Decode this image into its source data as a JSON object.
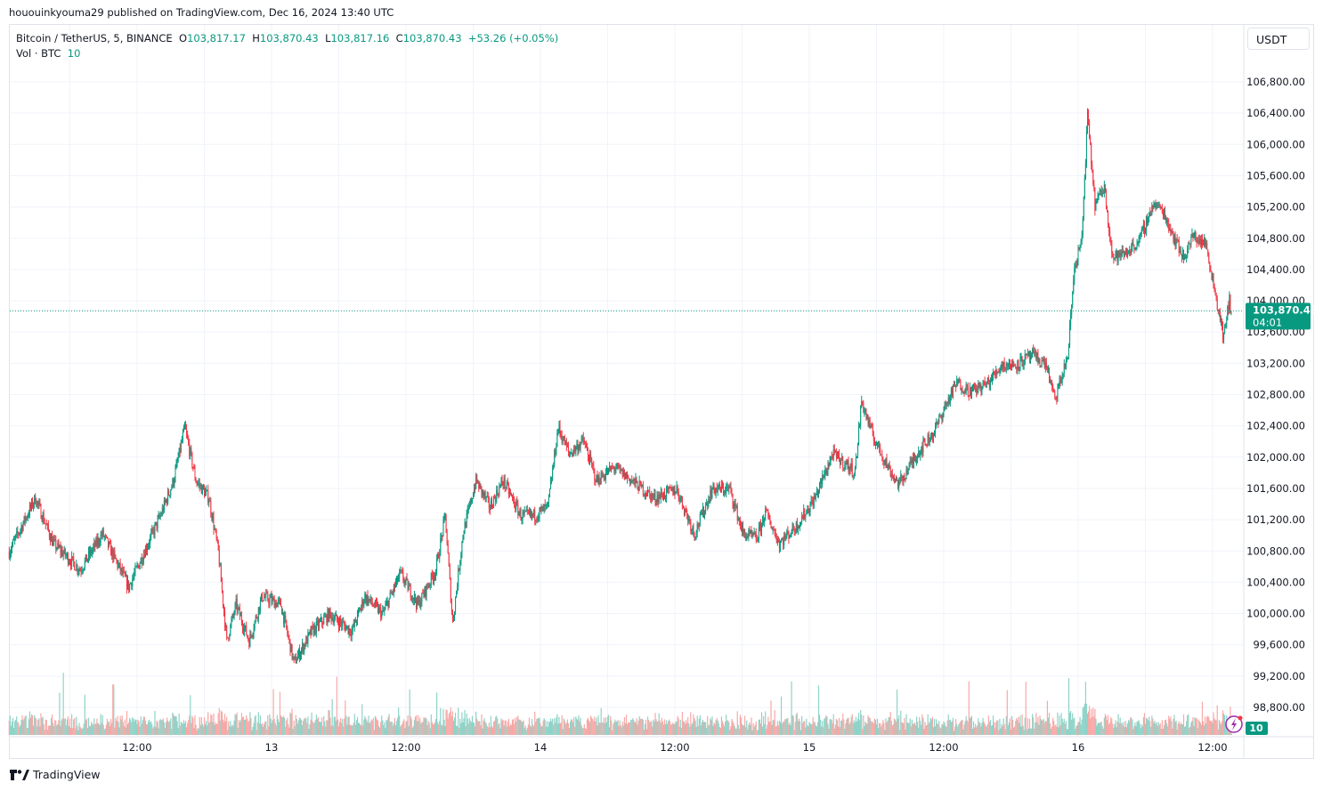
{
  "published": "hououinkyouma29 published on TradingView.com, Dec 16, 2024 13:40 UTC",
  "legend": {
    "symbol": "Bitcoin / TetherUS, 5, BINANCE",
    "o_label": "O",
    "o": "103,817.17",
    "h_label": "H",
    "h": "103,870.43",
    "l_label": "L",
    "l": "103,817.16",
    "c_label": "C",
    "c": "103,870.43",
    "change": "+53.26 (+0.05%)",
    "vol_label": "Vol · BTC",
    "vol": "10"
  },
  "currency_button": "USDT",
  "footer_brand": "TradingView",
  "colors": {
    "up": "#089981",
    "down": "#f23645",
    "up_vol": "#8fd3c8",
    "down_vol": "#f7a9a7"
  },
  "chart_data": {
    "type": "candlestick",
    "interval": "5",
    "ylim": [
      98600,
      107200
    ],
    "y_ticks": [
      "106,800.00",
      "106,400.00",
      "106,000.00",
      "105,600.00",
      "105,200.00",
      "104,800.00",
      "104,400.00",
      "104,000.00",
      "103,600.00",
      "103,200.00",
      "102,800.00",
      "102,400.00",
      "102,000.00",
      "101,600.00",
      "101,200.00",
      "100,800.00",
      "100,400.00",
      "100,000.00",
      "99,600.00",
      "99,200.00",
      "98,800.00"
    ],
    "x_ticks": [
      "12:00",
      "13",
      "12:00",
      "14",
      "12:00",
      "15",
      "12:00",
      "16",
      "12:00"
    ],
    "last_price": "103,870.43",
    "countdown": "04:01",
    "last_volume": "10",
    "close_path": [
      [
        "12 00:35",
        100790
      ],
      [
        "12 02:55",
        101475
      ],
      [
        "12 04:30",
        100900
      ],
      [
        "12 06:55",
        100560
      ],
      [
        "12 08:55",
        101020
      ],
      [
        "12 11:15",
        100340
      ],
      [
        "12 12:50",
        100850
      ],
      [
        "12 14:05",
        101250
      ],
      [
        "12 15:15",
        101700
      ],
      [
        "12 16:15",
        102380
      ],
      [
        "12 17:15",
        101700
      ],
      [
        "12 18:25",
        101475
      ],
      [
        "12 19:15",
        100790
      ],
      [
        "12 20:00",
        99650
      ],
      [
        "12 20:50",
        100110
      ],
      [
        "12 22:00",
        99650
      ],
      [
        "12 23:10",
        100220
      ],
      [
        "13 00:50",
        100110
      ],
      [
        "13 02:00",
        99370
      ],
      [
        "13 03:35",
        99770
      ],
      [
        "13 05:10",
        99990
      ],
      [
        "13 07:10",
        99770
      ],
      [
        "13 08:20",
        100220
      ],
      [
        "13 09:55",
        99990
      ],
      [
        "13 11:30",
        100510
      ],
      [
        "13 13:05",
        100110
      ],
      [
        "13 14:40",
        100560
      ],
      [
        "13 15:30",
        101250
      ],
      [
        "13 16:10",
        99880
      ],
      [
        "13 17:05",
        101020
      ],
      [
        "13 18:15",
        101700
      ],
      [
        "13 19:30",
        101360
      ],
      [
        "13 20:40",
        101700
      ],
      [
        "13 22:15",
        101250
      ],
      [
        "13 23:25",
        101250
      ],
      [
        "14 00:40",
        101360
      ],
      [
        "14 01:35",
        102380
      ],
      [
        "14 02:35",
        102040
      ],
      [
        "14 03:50",
        102210
      ],
      [
        "14 05:00",
        101700
      ],
      [
        "14 06:35",
        101870
      ],
      [
        "14 08:10",
        101700
      ],
      [
        "14 10:10",
        101475
      ],
      [
        "14 12:10",
        101590
      ],
      [
        "14 13:45",
        101020
      ],
      [
        "14 15:20",
        101590
      ],
      [
        "14 16:55",
        101590
      ],
      [
        "14 18:05",
        101020
      ],
      [
        "14 19:20",
        100960
      ],
      [
        "14 20:05",
        101300
      ],
      [
        "14 21:20",
        100900
      ],
      [
        "14 22:55",
        101130
      ],
      [
        "15 00:30",
        101475
      ],
      [
        "15 02:05",
        102040
      ],
      [
        "15 04:05",
        101815
      ],
      [
        "15 04:40",
        102720
      ],
      [
        "15 05:40",
        102270
      ],
      [
        "15 07:15",
        101815
      ],
      [
        "15 08:00",
        101650
      ],
      [
        "15 09:35",
        102040
      ],
      [
        "15 11:10",
        102330
      ],
      [
        "15 12:00",
        102610
      ],
      [
        "15 13:10",
        102950
      ],
      [
        "15 14:25",
        102840
      ],
      [
        "15 16:00",
        102950
      ],
      [
        "15 17:10",
        103180
      ],
      [
        "15 18:20",
        103180
      ],
      [
        "15 19:55",
        103300
      ],
      [
        "15 21:10",
        103180
      ],
      [
        "15 21:55",
        102720
      ],
      [
        "15 23:05",
        103300
      ],
      [
        "15 23:40",
        104430
      ],
      [
        "16 00:20",
        104780
      ],
      [
        "16 00:50",
        106370
      ],
      [
        "16 01:30",
        105230
      ],
      [
        "16 02:20",
        105460
      ],
      [
        "16 03:05",
        104550
      ],
      [
        "16 04:15",
        104610
      ],
      [
        "16 05:30",
        104780
      ],
      [
        "16 06:40",
        105230
      ],
      [
        "16 07:30",
        105170
      ],
      [
        "16 08:40",
        104780
      ],
      [
        "16 09:25",
        104550
      ],
      [
        "16 10:15",
        104830
      ],
      [
        "16 11:25",
        104720
      ],
      [
        "16 12:15",
        104090
      ],
      [
        "16 13:00",
        103520
      ],
      [
        "16 13:30",
        104030
      ],
      [
        "16 13:40",
        103870
      ]
    ]
  }
}
